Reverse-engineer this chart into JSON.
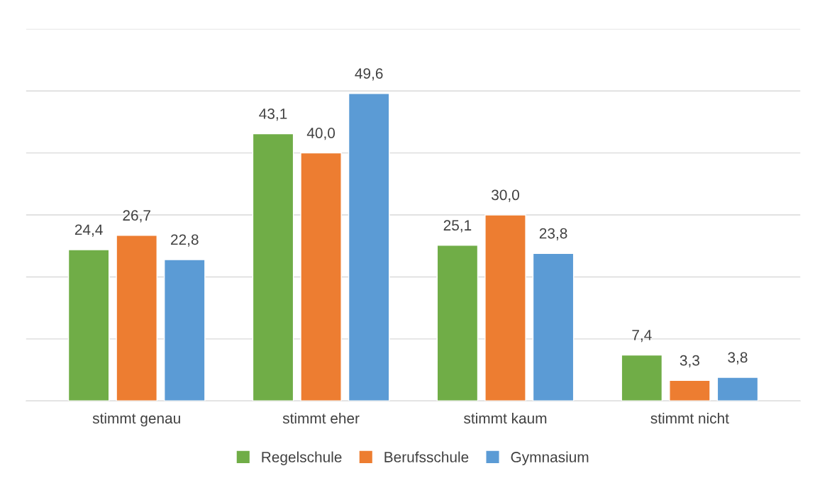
{
  "chart_data": {
    "type": "bar",
    "categories": [
      "stimmt genau",
      "stimmt eher",
      "stimmt kaum",
      "stimmt nicht"
    ],
    "series": [
      {
        "name": "Regelschule",
        "color": "#70ad47",
        "values": [
          24.4,
          43.1,
          25.1,
          7.4
        ],
        "value_labels": [
          "24,4",
          "43,1",
          "25,1",
          "7,4"
        ]
      },
      {
        "name": "Berufsschule",
        "color": "#ed7d31",
        "values": [
          26.7,
          40.0,
          30.0,
          3.3
        ],
        "value_labels": [
          "26,7",
          "40,0",
          "30,0",
          "3,3"
        ]
      },
      {
        "name": "Gymnasium",
        "color": "#5b9bd5",
        "values": [
          22.8,
          49.6,
          23.8,
          3.8
        ],
        "value_labels": [
          "22,8",
          "49,6",
          "23,8",
          "3,8"
        ]
      }
    ],
    "ylim": [
      0,
      60
    ],
    "yticks": [
      {
        "value": 0,
        "label": null
      },
      {
        "value": 10,
        "label": null
      },
      {
        "value": 20,
        "label": null
      },
      {
        "value": 30,
        "label": null
      },
      {
        "value": 40,
        "label": null
      },
      {
        "value": 50,
        "label": null
      },
      {
        "value": 60,
        "label": null
      }
    ],
    "grid": "y",
    "legend": "bottom",
    "tick_labels": "x"
  }
}
